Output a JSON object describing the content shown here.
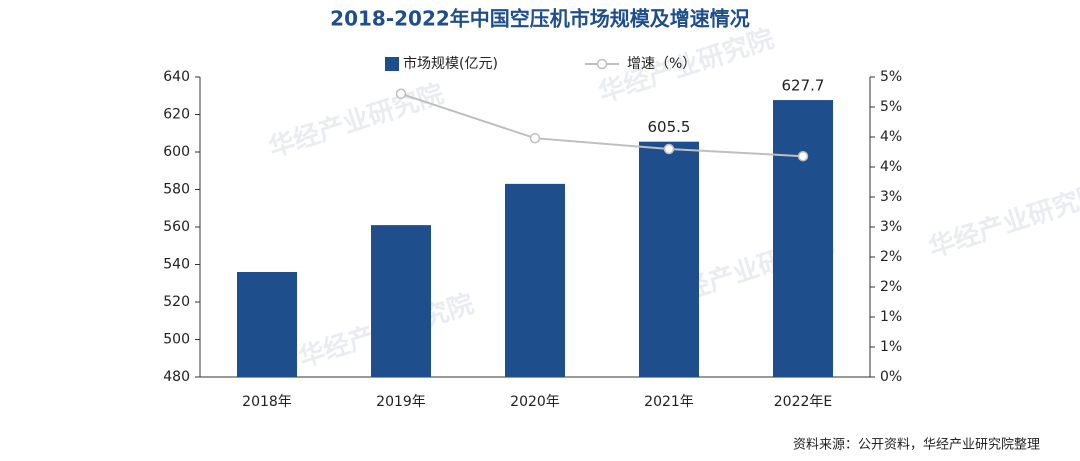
{
  "chart_data": {
    "type": "bar_line",
    "title": "2018-2022年中国空压机市场规模及增速情况",
    "categories": [
      "2018年",
      "2019年",
      "2020年",
      "2021年",
      "2022年E"
    ],
    "series": [
      {
        "name": "市场规模(亿元)",
        "type": "bar",
        "color": "#1f4e8c",
        "values": [
          536,
          561,
          583,
          605.5,
          627.7
        ],
        "value_labels": [
          null,
          null,
          null,
          "605.5",
          "627.7"
        ]
      },
      {
        "name": "增速（%）",
        "type": "line",
        "axis": "y2",
        "color": "#bfbfbf",
        "values": [
          null,
          4.72,
          3.98,
          3.8,
          3.68
        ]
      }
    ],
    "ylim": [
      480,
      640
    ],
    "yticks": [
      480,
      500,
      520,
      540,
      560,
      580,
      600,
      620,
      640
    ],
    "y2lim": [
      0,
      5
    ],
    "y2ticks": [
      {
        "value": 0,
        "label": "0%"
      },
      {
        "value": 0.5,
        "label": "1%"
      },
      {
        "value": 1,
        "label": "1%"
      },
      {
        "value": 1.5,
        "label": "2%"
      },
      {
        "value": 2,
        "label": "2%"
      },
      {
        "value": 2.5,
        "label": "3%"
      },
      {
        "value": 3,
        "label": "3%"
      },
      {
        "value": 3.5,
        "label": "4%"
      },
      {
        "value": 4,
        "label": "4%"
      },
      {
        "value": 4.5,
        "label": "5%"
      },
      {
        "value": 5,
        "label": "5%"
      }
    ],
    "grid": false,
    "source": "资料来源：公开资料，华经产业研究院整理",
    "watermark": "华经产业研究院"
  }
}
